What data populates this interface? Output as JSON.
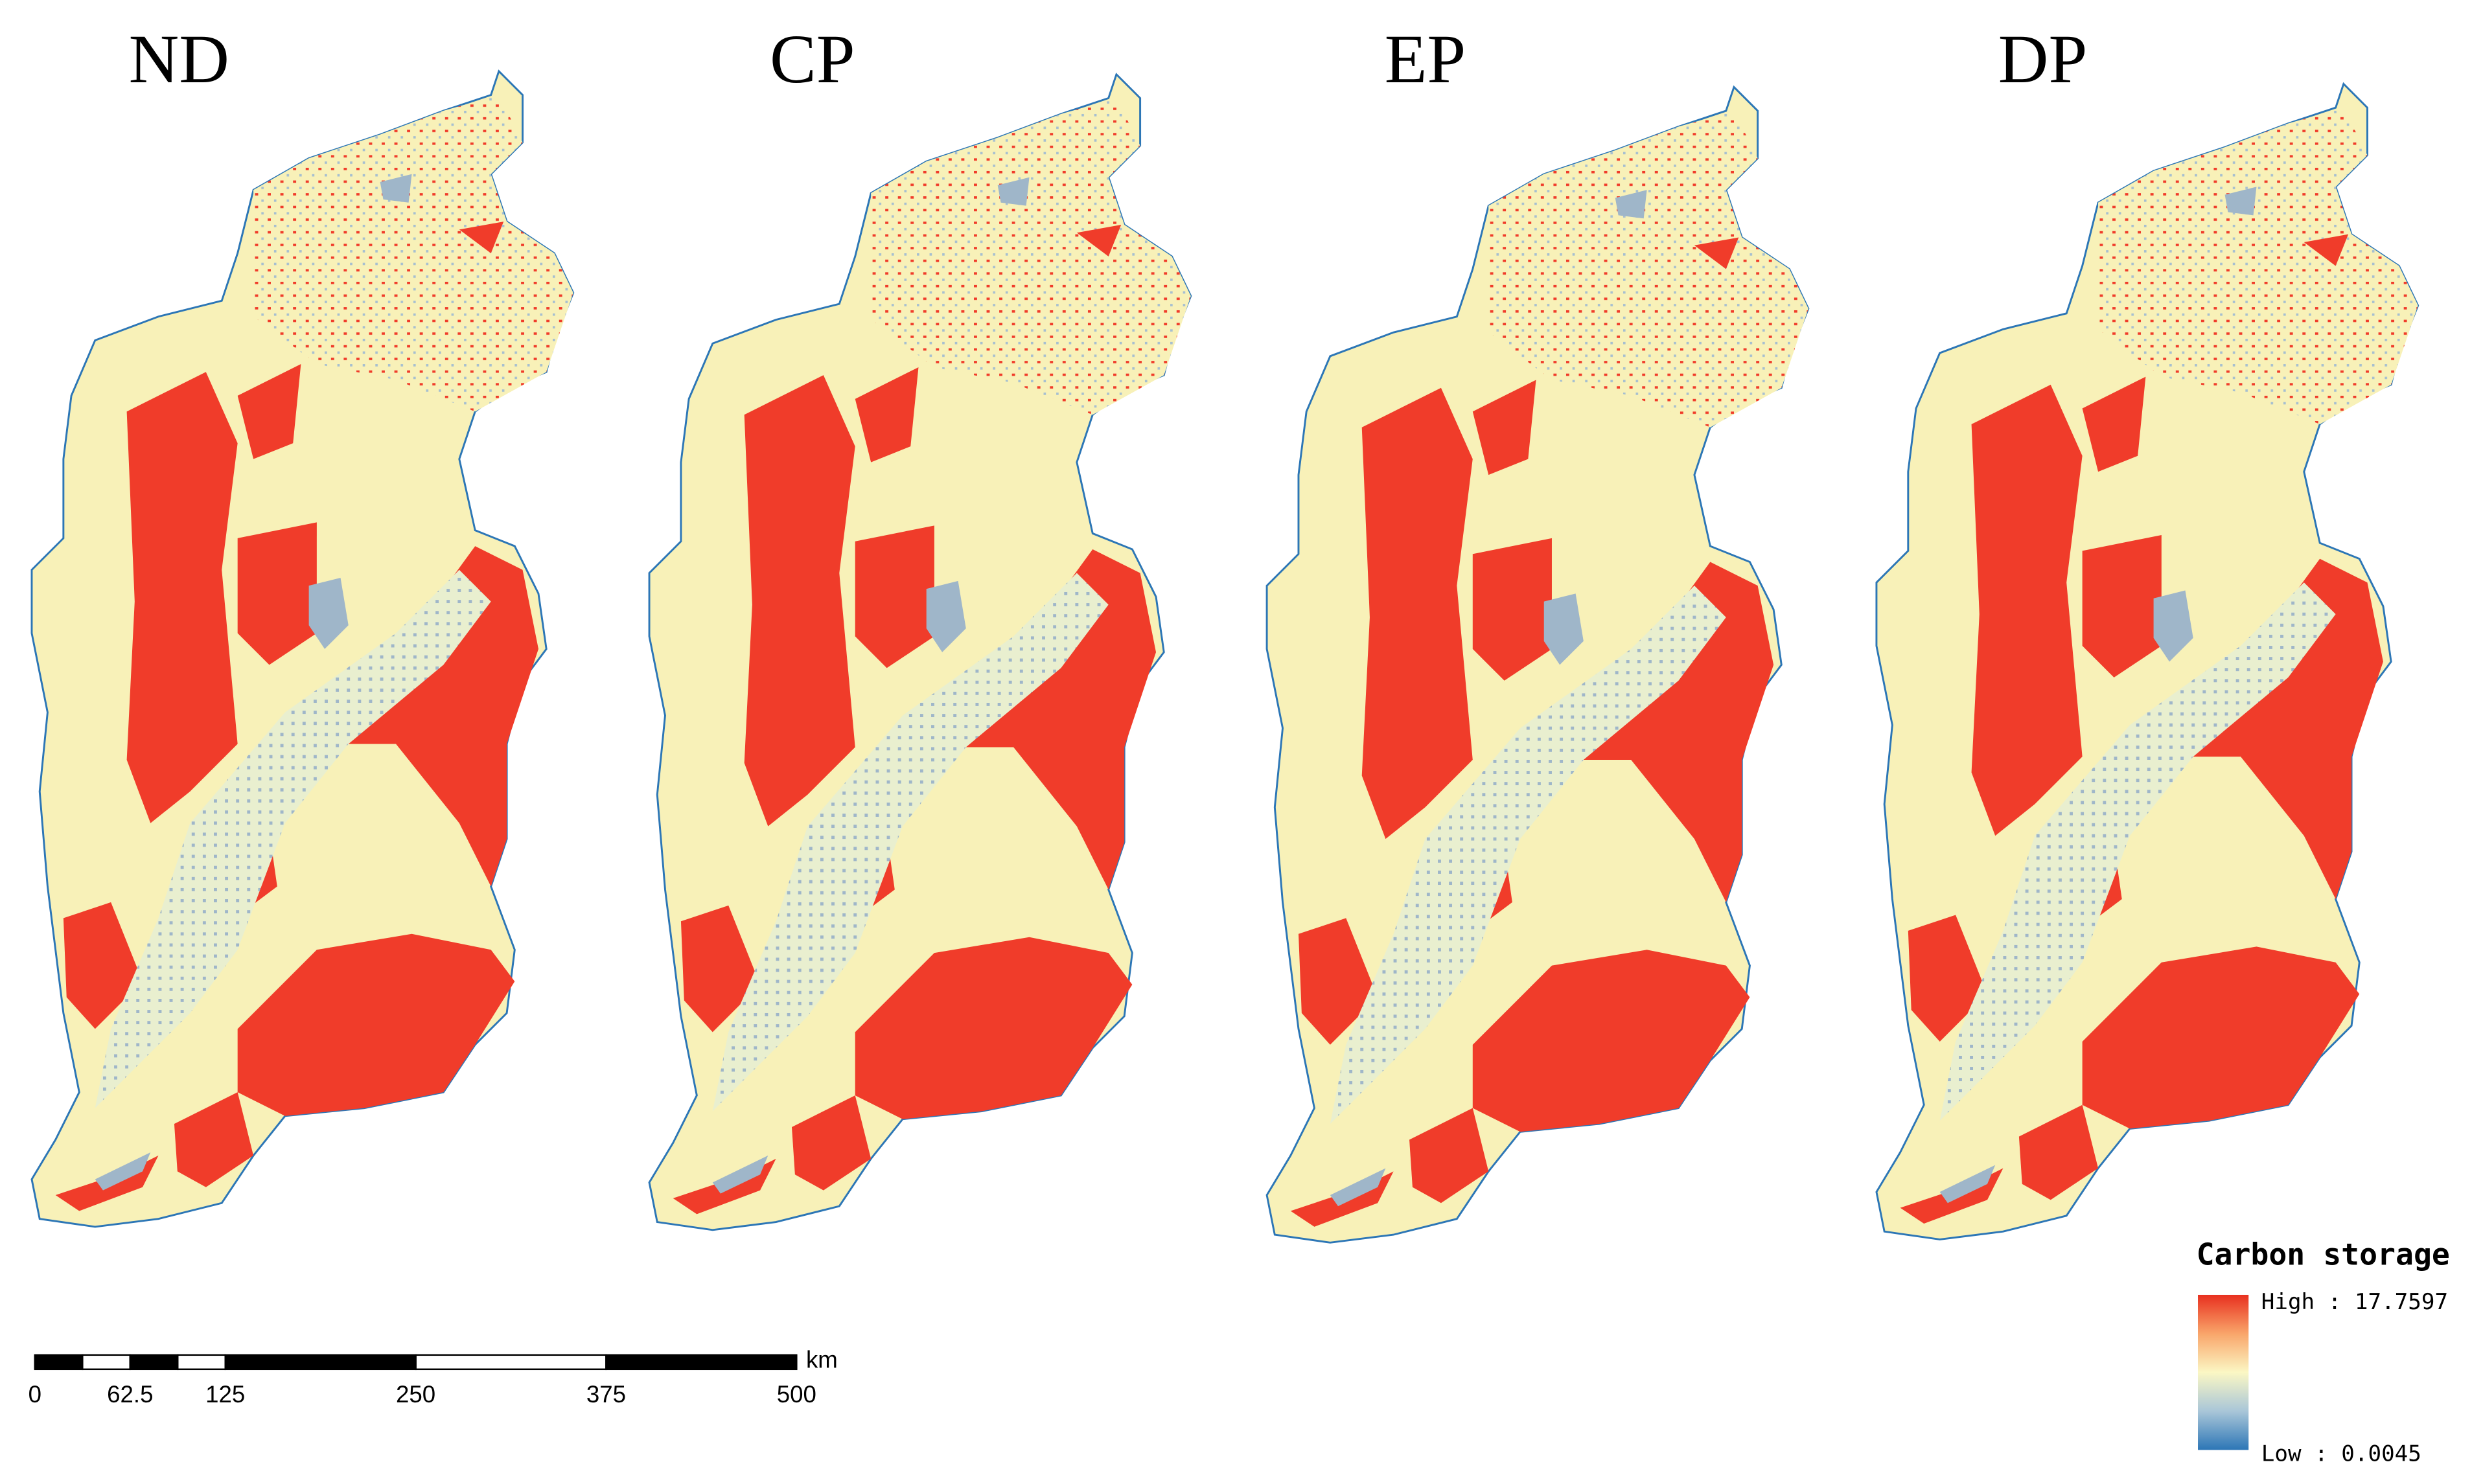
{
  "panels": [
    {
      "title": "ND"
    },
    {
      "title": "CP"
    },
    {
      "title": "EP"
    },
    {
      "title": "DP"
    }
  ],
  "legend": {
    "title": "Carbon storage",
    "high": "High : 17.7597",
    "low": "Low : 0.0045"
  },
  "scale_bar": {
    "unit": "km",
    "ticks": [
      0,
      62.5,
      125,
      250,
      375,
      500
    ]
  }
}
